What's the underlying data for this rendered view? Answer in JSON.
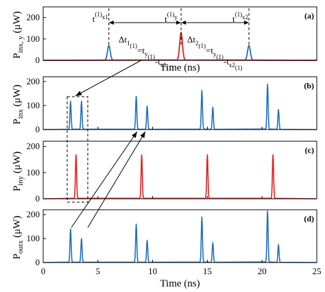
{
  "colors": {
    "blue": "#1f6fbf",
    "red": "#e0201f",
    "axis": "#000000"
  },
  "chart_data": [
    {
      "panel": "(a)",
      "type": "line",
      "ylabel": "P",
      "ylabel_sub": "inx, y",
      "ylabel_unit": "(μW)",
      "xlabel": "Time (ns)",
      "ylim": [
        0,
        250
      ],
      "yticks": [
        0,
        100,
        200
      ],
      "ytick_labels": [
        "0",
        "100",
        "200"
      ],
      "show_xticks": false,
      "series": [
        {
          "color": "blue",
          "peaks": [
            {
              "x": 6.0,
              "y": 70
            },
            {
              "x": 18.8,
              "y": 70
            }
          ]
        },
        {
          "color": "red",
          "peaks": [
            {
              "x": 12.6,
              "y": 130
            }
          ]
        }
      ],
      "annotations": {
        "markers": [
          {
            "x": 6.0,
            "label": "t",
            "sup": "(1)",
            "sub": "x1"
          },
          {
            "x": 12.6,
            "label": "t",
            "sup": "(1)",
            "sub": "y"
          },
          {
            "x": 18.8,
            "label": "t",
            "sup": "(1)",
            "sub": "x2"
          }
        ],
        "delta1": {
          "lhs": "Δt",
          "lhs_sub": "1",
          "lhs_sup": "(1)",
          "eq": "=t",
          "eq_sub": "y",
          "eq_sup": "(1)",
          "minus": "-t",
          "minus_sub": "x1",
          "minus_sup": "(1)"
        },
        "delta2": {
          "lhs": "Δt",
          "lhs_sub": "2",
          "lhs_sup": "(1)",
          "eq": "=t",
          "eq_sub": "y",
          "eq_sup": "(1)",
          "minus": "-t",
          "minus_sub": "x2",
          "minus_sup": "(1)"
        }
      }
    },
    {
      "panel": "(b)",
      "type": "line",
      "ylabel": "P",
      "ylabel_sub": "inx",
      "ylabel_unit": "(μW)",
      "ylim": [
        0,
        220
      ],
      "yticks": [
        0,
        100,
        200
      ],
      "ytick_labels": [
        "0",
        "100",
        "200"
      ],
      "show_xticks": true,
      "series": [
        {
          "color": "blue",
          "peaks": [
            {
              "x": 2.5,
              "y": 118
            },
            {
              "x": 3.5,
              "y": 118
            },
            {
              "x": 8.5,
              "y": 138
            },
            {
              "x": 9.5,
              "y": 98
            },
            {
              "x": 14.5,
              "y": 163
            },
            {
              "x": 15.5,
              "y": 93
            },
            {
              "x": 20.5,
              "y": 190
            },
            {
              "x": 21.5,
              "y": 83
            }
          ]
        }
      ]
    },
    {
      "panel": "(c)",
      "type": "line",
      "ylabel": "P",
      "ylabel_sub": "iny",
      "ylabel_unit": "(μW)",
      "ylim": [
        0,
        220
      ],
      "yticks": [
        0,
        100,
        200
      ],
      "ytick_labels": [
        "0",
        "100",
        "200"
      ],
      "show_xticks": true,
      "series": [
        {
          "color": "red",
          "peaks": [
            {
              "x": 3.0,
              "y": 168
            },
            {
              "x": 9.0,
              "y": 168
            },
            {
              "x": 15.0,
              "y": 168
            },
            {
              "x": 21.0,
              "y": 168
            }
          ]
        }
      ]
    },
    {
      "panel": "(d)",
      "type": "line",
      "ylabel": "P",
      "ylabel_sub": "outx",
      "ylabel_unit": "(μW)",
      "xlabel": "Time (ns)",
      "ylim": [
        0,
        220
      ],
      "yticks": [
        0,
        100,
        200
      ],
      "ytick_labels": [
        "0",
        "100",
        "200"
      ],
      "xlim": [
        0,
        25
      ],
      "xticks": [
        0,
        5,
        10,
        15,
        20,
        25
      ],
      "xtick_labels": [
        "0",
        "5",
        "10",
        "15",
        "20",
        "25"
      ],
      "show_xticks": true,
      "series": [
        {
          "color": "blue",
          "peaks": [
            {
              "x": 2.5,
              "y": 140
            },
            {
              "x": 3.5,
              "y": 100
            },
            {
              "x": 8.5,
              "y": 160
            },
            {
              "x": 9.5,
              "y": 93
            },
            {
              "x": 14.5,
              "y": 190
            },
            {
              "x": 15.5,
              "y": 83
            },
            {
              "x": 20.5,
              "y": 215
            },
            {
              "x": 21.5,
              "y": 75
            }
          ]
        }
      ]
    }
  ]
}
